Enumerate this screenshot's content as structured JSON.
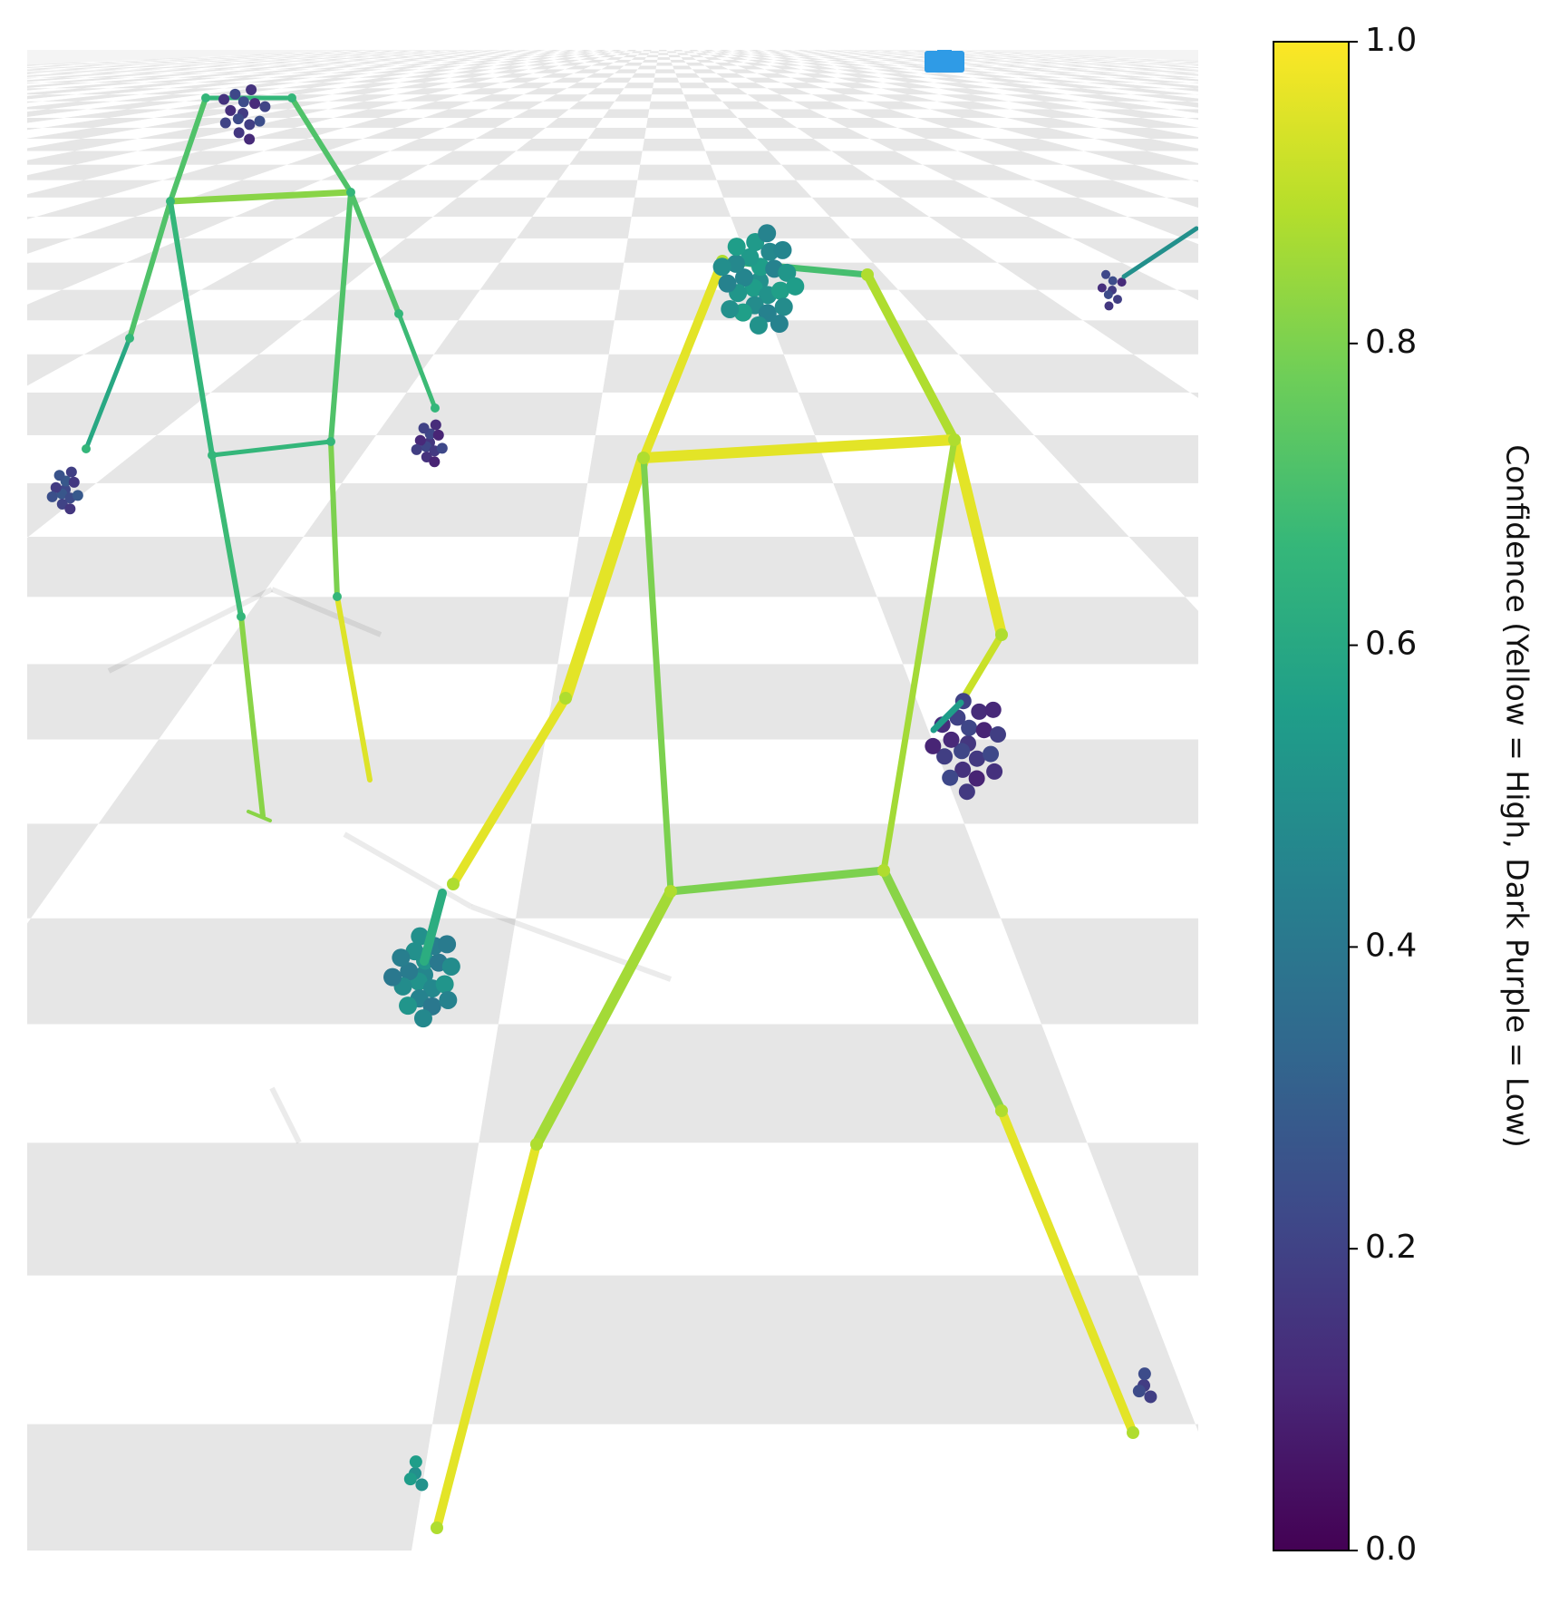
{
  "chart_data": {
    "type": "other",
    "description_free": true,
    "colorbar": {
      "label": "Confidence (Yellow = High, Dark Purple = Low)",
      "range": [
        0.0,
        1.0
      ],
      "ticks": [
        {
          "value": 0.0,
          "label": "0.0"
        },
        {
          "value": 0.2,
          "label": "0.2"
        },
        {
          "value": 0.4,
          "label": "0.4"
        },
        {
          "value": 0.6,
          "label": "0.6"
        },
        {
          "value": 0.8,
          "label": "0.8"
        },
        {
          "value": 1.0,
          "label": "1.0"
        }
      ],
      "colormap": "viridis",
      "colormap_stops": [
        "#440154",
        "#482878",
        "#3e4989",
        "#31688e",
        "#26828e",
        "#1f9e89",
        "#35b779",
        "#6ece58",
        "#b5de2b",
        "#fde725"
      ]
    },
    "grid": "checkerboard-floor",
    "floor_colors": [
      "#ffffff",
      "#e6e6e6"
    ]
  }
}
